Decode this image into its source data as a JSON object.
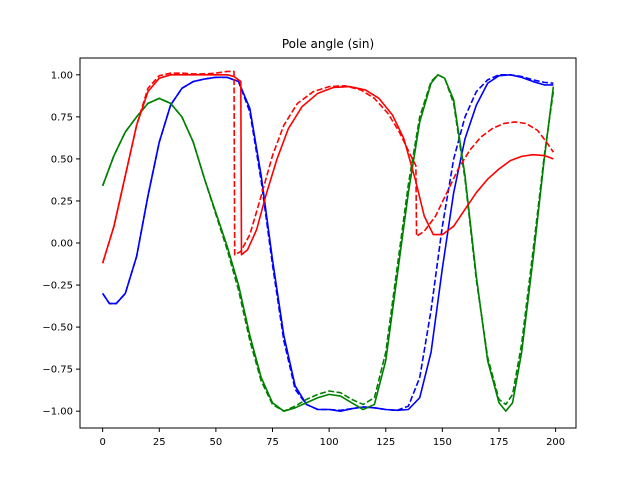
{
  "chart_data": {
    "type": "line",
    "title": "Pole angle (sin)",
    "xlabel": "",
    "ylabel": "",
    "xlim": [
      -10,
      209
    ],
    "ylim": [
      -1.1,
      1.1
    ],
    "xticks": [
      0,
      25,
      50,
      75,
      100,
      125,
      150,
      175,
      200
    ],
    "yticks": [
      -1.0,
      -0.75,
      -0.5,
      -0.25,
      0.0,
      0.25,
      0.5,
      0.75,
      1.0
    ],
    "xtick_labels": [
      "0",
      "25",
      "50",
      "75",
      "100",
      "125",
      "150",
      "175",
      "200"
    ],
    "ytick_labels": [
      "−1.00",
      "−0.75",
      "−0.50",
      "−0.25",
      "0.00",
      "0.25",
      "0.50",
      "0.75",
      "1.00"
    ],
    "grid": false,
    "legend": "none",
    "series": [
      {
        "color": "#0000ff",
        "style": "solid",
        "points": [
          [
            0,
            -0.3
          ],
          [
            3,
            -0.36
          ],
          [
            6,
            -0.36
          ],
          [
            10,
            -0.3
          ],
          [
            15,
            -0.08
          ],
          [
            20,
            0.28
          ],
          [
            25,
            0.6
          ],
          [
            30,
            0.82
          ],
          [
            35,
            0.92
          ],
          [
            40,
            0.96
          ],
          [
            45,
            0.975
          ],
          [
            50,
            0.985
          ],
          [
            55,
            0.985
          ],
          [
            60,
            0.96
          ],
          [
            65,
            0.8
          ],
          [
            70,
            0.4
          ],
          [
            75,
            -0.1
          ],
          [
            80,
            -0.55
          ],
          [
            85,
            -0.85
          ],
          [
            90,
            -0.96
          ],
          [
            95,
            -0.99
          ],
          [
            100,
            -0.99
          ],
          [
            105,
            -1.0
          ],
          [
            110,
            -0.985
          ],
          [
            115,
            -0.975
          ],
          [
            120,
            -0.98
          ],
          [
            125,
            -0.99
          ],
          [
            130,
            -0.995
          ],
          [
            135,
            -0.99
          ],
          [
            140,
            -0.92
          ],
          [
            145,
            -0.65
          ],
          [
            150,
            -0.15
          ],
          [
            155,
            0.3
          ],
          [
            160,
            0.62
          ],
          [
            165,
            0.82
          ],
          [
            170,
            0.95
          ],
          [
            175,
            0.995
          ],
          [
            180,
            1.0
          ],
          [
            185,
            0.985
          ],
          [
            190,
            0.96
          ],
          [
            195,
            0.94
          ],
          [
            199,
            0.94
          ]
        ]
      },
      {
        "color": "#0000ff",
        "style": "dashed",
        "points": [
          [
            0,
            -0.3
          ],
          [
            3,
            -0.36
          ],
          [
            6,
            -0.36
          ],
          [
            10,
            -0.3
          ],
          [
            15,
            -0.08
          ],
          [
            20,
            0.28
          ],
          [
            25,
            0.6
          ],
          [
            30,
            0.82
          ],
          [
            35,
            0.92
          ],
          [
            40,
            0.96
          ],
          [
            45,
            0.975
          ],
          [
            50,
            0.985
          ],
          [
            55,
            0.985
          ],
          [
            60,
            0.96
          ],
          [
            65,
            0.78
          ],
          [
            70,
            0.37
          ],
          [
            75,
            -0.13
          ],
          [
            80,
            -0.58
          ],
          [
            85,
            -0.87
          ],
          [
            90,
            -0.96
          ],
          [
            95,
            -0.99
          ],
          [
            100,
            -0.99
          ],
          [
            105,
            -0.995
          ],
          [
            110,
            -0.985
          ],
          [
            115,
            -0.975
          ],
          [
            120,
            -0.98
          ],
          [
            125,
            -0.99
          ],
          [
            130,
            -0.995
          ],
          [
            135,
            -0.97
          ],
          [
            140,
            -0.8
          ],
          [
            145,
            -0.4
          ],
          [
            150,
            0.1
          ],
          [
            155,
            0.5
          ],
          [
            160,
            0.75
          ],
          [
            165,
            0.9
          ],
          [
            170,
            0.97
          ],
          [
            175,
            1.0
          ],
          [
            180,
            1.0
          ],
          [
            185,
            0.99
          ],
          [
            190,
            0.97
          ],
          [
            195,
            0.955
          ],
          [
            199,
            0.95
          ]
        ]
      },
      {
        "color": "#008000",
        "style": "solid",
        "points": [
          [
            0,
            0.34
          ],
          [
            5,
            0.52
          ],
          [
            10,
            0.66
          ],
          [
            15,
            0.75
          ],
          [
            20,
            0.83
          ],
          [
            25,
            0.86
          ],
          [
            30,
            0.83
          ],
          [
            35,
            0.75
          ],
          [
            40,
            0.6
          ],
          [
            45,
            0.38
          ],
          [
            50,
            0.18
          ],
          [
            55,
            -0.02
          ],
          [
            60,
            -0.25
          ],
          [
            65,
            -0.55
          ],
          [
            70,
            -0.8
          ],
          [
            75,
            -0.95
          ],
          [
            80,
            -1.0
          ],
          [
            85,
            -0.98
          ],
          [
            90,
            -0.95
          ],
          [
            95,
            -0.92
          ],
          [
            100,
            -0.9
          ],
          [
            105,
            -0.91
          ],
          [
            110,
            -0.95
          ],
          [
            115,
            -0.99
          ],
          [
            120,
            -0.96
          ],
          [
            125,
            -0.7
          ],
          [
            130,
            -0.2
          ],
          [
            135,
            0.3
          ],
          [
            140,
            0.72
          ],
          [
            145,
            0.95
          ],
          [
            148,
            1.0
          ],
          [
            151,
            0.98
          ],
          [
            155,
            0.85
          ],
          [
            160,
            0.4
          ],
          [
            165,
            -0.2
          ],
          [
            170,
            -0.7
          ],
          [
            175,
            -0.95
          ],
          [
            178,
            -1.0
          ],
          [
            181,
            -0.95
          ],
          [
            185,
            -0.65
          ],
          [
            190,
            -0.1
          ],
          [
            195,
            0.5
          ],
          [
            199,
            0.93
          ]
        ]
      },
      {
        "color": "#008000",
        "style": "dashed",
        "points": [
          [
            0,
            0.34
          ],
          [
            5,
            0.52
          ],
          [
            10,
            0.66
          ],
          [
            15,
            0.75
          ],
          [
            20,
            0.83
          ],
          [
            25,
            0.86
          ],
          [
            30,
            0.83
          ],
          [
            35,
            0.75
          ],
          [
            40,
            0.6
          ],
          [
            45,
            0.38
          ],
          [
            50,
            0.17
          ],
          [
            55,
            -0.04
          ],
          [
            60,
            -0.28
          ],
          [
            65,
            -0.58
          ],
          [
            70,
            -0.82
          ],
          [
            75,
            -0.96
          ],
          [
            80,
            -1.0
          ],
          [
            85,
            -0.97
          ],
          [
            90,
            -0.93
          ],
          [
            95,
            -0.9
          ],
          [
            100,
            -0.88
          ],
          [
            105,
            -0.89
          ],
          [
            110,
            -0.93
          ],
          [
            115,
            -0.96
          ],
          [
            120,
            -0.92
          ],
          [
            125,
            -0.65
          ],
          [
            130,
            -0.15
          ],
          [
            135,
            0.35
          ],
          [
            140,
            0.75
          ],
          [
            145,
            0.96
          ],
          [
            148,
            1.0
          ],
          [
            151,
            0.98
          ],
          [
            155,
            0.83
          ],
          [
            160,
            0.38
          ],
          [
            165,
            -0.22
          ],
          [
            170,
            -0.68
          ],
          [
            175,
            -0.93
          ],
          [
            178,
            -0.96
          ],
          [
            181,
            -0.9
          ],
          [
            185,
            -0.6
          ],
          [
            190,
            -0.05
          ],
          [
            195,
            0.52
          ],
          [
            199,
            0.9
          ]
        ]
      },
      {
        "color": "#ff0000",
        "style": "solid",
        "points": [
          [
            0,
            -0.12
          ],
          [
            5,
            0.1
          ],
          [
            10,
            0.4
          ],
          [
            15,
            0.7
          ],
          [
            20,
            0.9
          ],
          [
            25,
            0.98
          ],
          [
            30,
            1.0
          ],
          [
            35,
            1.0
          ],
          [
            40,
            1.0
          ],
          [
            45,
            1.0
          ],
          [
            50,
            1.0
          ],
          [
            55,
            1.0
          ],
          [
            58,
            0.99
          ],
          [
            61,
            0.96
          ],
          [
            61.3,
            -0.07
          ],
          [
            64,
            -0.04
          ],
          [
            68,
            0.08
          ],
          [
            72,
            0.28
          ],
          [
            77,
            0.5
          ],
          [
            82,
            0.68
          ],
          [
            88,
            0.81
          ],
          [
            95,
            0.89
          ],
          [
            102,
            0.925
          ],
          [
            109,
            0.93
          ],
          [
            116,
            0.91
          ],
          [
            122,
            0.86
          ],
          [
            128,
            0.76
          ],
          [
            133,
            0.62
          ],
          [
            138,
            0.38
          ],
          [
            142,
            0.16
          ],
          [
            146,
            0.05
          ],
          [
            150,
            0.05
          ],
          [
            155,
            0.1
          ],
          [
            160,
            0.2
          ],
          [
            165,
            0.3
          ],
          [
            170,
            0.38
          ],
          [
            175,
            0.44
          ],
          [
            180,
            0.49
          ],
          [
            185,
            0.515
          ],
          [
            190,
            0.525
          ],
          [
            195,
            0.52
          ],
          [
            199,
            0.5
          ]
        ]
      },
      {
        "color": "#ff0000",
        "style": "dashed",
        "points": [
          [
            0,
            -0.12
          ],
          [
            5,
            0.1
          ],
          [
            10,
            0.4
          ],
          [
            15,
            0.7
          ],
          [
            20,
            0.92
          ],
          [
            25,
            0.995
          ],
          [
            30,
            1.01
          ],
          [
            35,
            1.01
          ],
          [
            40,
            1.005
          ],
          [
            45,
            1.005
          ],
          [
            50,
            1.01
          ],
          [
            55,
            1.02
          ],
          [
            58,
            1.02
          ],
          [
            58.3,
            -0.07
          ],
          [
            61,
            -0.05
          ],
          [
            65,
            0.05
          ],
          [
            70,
            0.28
          ],
          [
            75,
            0.52
          ],
          [
            80,
            0.7
          ],
          [
            86,
            0.83
          ],
          [
            93,
            0.9
          ],
          [
            100,
            0.93
          ],
          [
            107,
            0.935
          ],
          [
            114,
            0.91
          ],
          [
            120,
            0.86
          ],
          [
            126,
            0.77
          ],
          [
            131,
            0.66
          ],
          [
            136,
            0.52
          ],
          [
            138.3,
            0.46
          ],
          [
            138.6,
            0.04
          ],
          [
            142,
            0.07
          ],
          [
            147,
            0.16
          ],
          [
            152,
            0.3
          ],
          [
            157,
            0.44
          ],
          [
            162,
            0.55
          ],
          [
            167,
            0.63
          ],
          [
            172,
            0.68
          ],
          [
            177,
            0.71
          ],
          [
            182,
            0.72
          ],
          [
            187,
            0.71
          ],
          [
            192,
            0.67
          ],
          [
            196,
            0.6
          ],
          [
            199,
            0.54
          ]
        ]
      }
    ]
  }
}
